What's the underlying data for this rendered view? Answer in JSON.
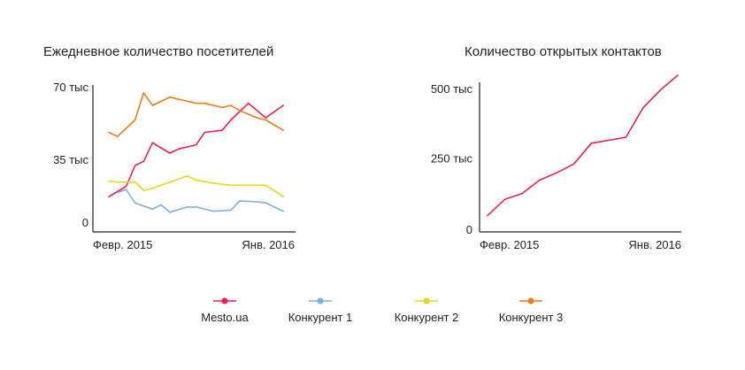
{
  "chart_data": [
    {
      "type": "line",
      "title": "Ежедневное количество посетителей",
      "x_tick_labels": [
        "Февр. 2015",
        "Янв. 2016"
      ],
      "y_tick_labels": [
        "70 тыс",
        "35 тыс",
        "0"
      ],
      "y_ticks": [
        70000,
        35000,
        0
      ],
      "ylim": [
        0,
        70000
      ],
      "x": [
        0,
        1,
        2,
        3,
        4,
        5,
        6,
        7,
        8,
        9,
        10,
        11,
        12,
        13,
        14,
        15,
        16,
        17,
        18,
        19,
        20
      ],
      "xlim": [
        0,
        21
      ],
      "grid": false,
      "series": [
        {
          "name": "Mesto.ua",
          "color": "#e8204f",
          "x": [
            0,
            2,
            3,
            4,
            5,
            7,
            8,
            10,
            11,
            13,
            14,
            16,
            18,
            20
          ],
          "values": [
            17000,
            22000,
            32000,
            34000,
            43000,
            38000,
            40000,
            42000,
            48000,
            49000,
            54000,
            62000,
            55000,
            61000
          ]
        },
        {
          "name": "Конкурент 1",
          "color": "#7fb0d8",
          "x": [
            1,
            2,
            3,
            5,
            6,
            7,
            9,
            10,
            12,
            14,
            15,
            17,
            18,
            20
          ],
          "values": [
            19000,
            20500,
            14000,
            11000,
            13000,
            9500,
            12000,
            12000,
            10000,
            10500,
            15000,
            14500,
            14000,
            10000
          ]
        },
        {
          "name": "Конкурент 2",
          "color": "#e4d81c",
          "x": [
            0,
            1,
            3,
            4,
            5,
            7,
            9,
            10,
            12,
            14,
            16,
            18,
            20
          ],
          "values": [
            24500,
            24000,
            24000,
            20000,
            21000,
            24000,
            27000,
            25000,
            23500,
            22500,
            22500,
            22500,
            17000
          ]
        },
        {
          "name": "Конкурент 3",
          "color": "#e97d17",
          "x": [
            0,
            1,
            3,
            4,
            5,
            7,
            8,
            10,
            11,
            13,
            14,
            15,
            17,
            18,
            20
          ],
          "values": [
            48000,
            46000,
            54000,
            67000,
            61000,
            65000,
            64000,
            62000,
            62000,
            60000,
            61000,
            58500,
            55000,
            54000,
            49000
          ]
        }
      ]
    },
    {
      "type": "line",
      "title": "Количество открытых контактов",
      "x_tick_labels": [
        "Февр. 2015",
        "Янв. 2016"
      ],
      "y_tick_labels": [
        "500 тыс",
        "250 тыс",
        "0"
      ],
      "y_ticks": [
        500000,
        250000,
        0
      ],
      "ylim": [
        0,
        500000
      ],
      "xlim": [
        0,
        11
      ],
      "grid": false,
      "series": [
        {
          "name": "Mesto.ua",
          "color": "#e8204f",
          "x": [
            0,
            1,
            2,
            3,
            4,
            5,
            6,
            7,
            8,
            9,
            10,
            11
          ],
          "values": [
            55000,
            110000,
            130000,
            175000,
            200000,
            230000,
            300000,
            310000,
            320000,
            420000,
            480000,
            530000
          ]
        }
      ]
    }
  ],
  "legend": [
    {
      "label": "Mesto.ua",
      "color": "#e8204f"
    },
    {
      "label": "Конкурент 1",
      "color": "#7fb0d8"
    },
    {
      "label": "Конкурент 2",
      "color": "#e4d81c"
    },
    {
      "label": "Конкурент 3",
      "color": "#e97d17"
    }
  ]
}
